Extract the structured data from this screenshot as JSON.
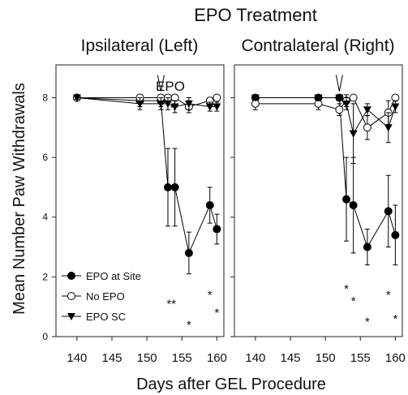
{
  "chart_data": {
    "type": "line",
    "title": "EPO Treatment",
    "xlabel": "Days after GEL Procedure",
    "ylabel": "Mean Number Paw Withdrawals",
    "x_ticks": [
      140,
      145,
      150,
      155,
      160
    ],
    "y_ticks": [
      0,
      2,
      4,
      6,
      8
    ],
    "xlim": [
      137,
      161
    ],
    "ylim": [
      0,
      9.1
    ],
    "grid": false,
    "legend_position": "bottom-left",
    "marker_colors": {
      "filled": "#000000",
      "open": "#ffffff"
    },
    "panels": [
      {
        "name": "Ipsilateral (Left)",
        "annotation_label": "EPO",
        "annotation_plus": "+",
        "annotation_arrow_x": 152,
        "series": [
          {
            "name": "EPO at Site",
            "marker": "circle-filled",
            "x": [
              140,
              149,
              152,
              153,
              154,
              156,
              159,
              160
            ],
            "y": [
              8.0,
              7.9,
              7.9,
              5.0,
              5.0,
              2.8,
              4.4,
              3.6
            ],
            "err": [
              0.05,
              0.2,
              0.2,
              1.3,
              1.3,
              0.7,
              0.6,
              0.5
            ]
          },
          {
            "name": "No EPO",
            "marker": "circle-open",
            "x": [
              140,
              149,
              152,
              153,
              154,
              156,
              159,
              160
            ],
            "y": [
              8.0,
              8.0,
              8.0,
              8.0,
              8.0,
              7.7,
              7.9,
              8.0
            ],
            "err": [
              0.05,
              0.1,
              0.1,
              0.1,
              0.1,
              0.2,
              0.1,
              0.05
            ]
          },
          {
            "name": "EPO SC",
            "marker": "triangle-down",
            "x": [
              140,
              149,
              152,
              153,
              154,
              156,
              159,
              160
            ],
            "y": [
              8.0,
              7.8,
              7.8,
              7.8,
              7.7,
              7.8,
              7.7,
              7.7
            ],
            "err": [
              0.05,
              0.2,
              0.2,
              0.2,
              0.2,
              0.2,
              0.15,
              0.15
            ]
          }
        ],
        "significance": [
          {
            "x": 153.5,
            "text": "**",
            "y": 1.1
          },
          {
            "x": 156,
            "text": "*",
            "y": 0.4
          },
          {
            "x": 159,
            "text": "*",
            "y": 1.4
          },
          {
            "x": 160,
            "text": "*",
            "y": 0.8
          }
        ]
      },
      {
        "name": "Contralateral (Right)",
        "annotation_arrow_x": 152,
        "series": [
          {
            "name": "EPO at Site",
            "marker": "circle-filled",
            "x": [
              140,
              149,
              152,
              153,
              154,
              156,
              159,
              160
            ],
            "y": [
              8.0,
              8.0,
              8.0,
              4.6,
              4.4,
              3.0,
              4.2,
              3.4
            ],
            "err": [
              0.05,
              0.1,
              0.1,
              1.4,
              1.6,
              0.6,
              1.2,
              1.0
            ]
          },
          {
            "name": "No EPO",
            "marker": "circle-open",
            "x": [
              140,
              149,
              152,
              153,
              154,
              156,
              159,
              160
            ],
            "y": [
              7.8,
              7.8,
              7.6,
              7.9,
              8.0,
              7.0,
              7.5,
              8.0
            ],
            "err": [
              0.2,
              0.2,
              0.2,
              0.2,
              0.05,
              0.4,
              0.4,
              0.1
            ]
          },
          {
            "name": "EPO SC",
            "marker": "triangle-down",
            "x": [
              140,
              149,
              152,
              153,
              154,
              156,
              159,
              160
            ],
            "y": [
              8.0,
              8.0,
              8.0,
              7.8,
              6.8,
              7.6,
              7.0,
              7.7
            ],
            "err": [
              0.05,
              0.1,
              0.1,
              0.2,
              1.0,
              0.2,
              0.5,
              0.2
            ]
          }
        ],
        "significance": [
          {
            "x": 153,
            "text": "*",
            "y": 1.6
          },
          {
            "x": 154,
            "text": "*",
            "y": 1.2
          },
          {
            "x": 156,
            "text": "*",
            "y": 0.5
          },
          {
            "x": 159,
            "text": "*",
            "y": 1.4
          },
          {
            "x": 160,
            "text": "*",
            "y": 0.6
          }
        ]
      }
    ]
  }
}
